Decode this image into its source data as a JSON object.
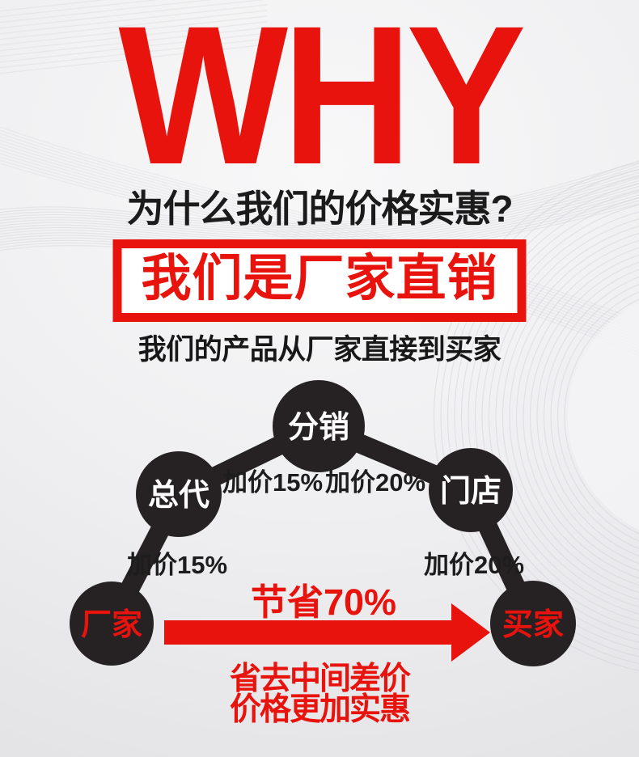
{
  "header": {
    "title": "WHY",
    "subtitle": "为什么我们的价格实惠?",
    "banner": "我们是厂家直销",
    "banner_caption": "我们的产品从厂家直接到买家"
  },
  "colors": {
    "red": "#e8130d",
    "dark": "#262122",
    "background": "#ededef"
  },
  "diagram": {
    "nodes": [
      {
        "id": "factory",
        "label": "厂家"
      },
      {
        "id": "general-agent",
        "label": "总代"
      },
      {
        "id": "distributor",
        "label": "分销"
      },
      {
        "id": "store",
        "label": "门店"
      },
      {
        "id": "buyer",
        "label": "买家"
      }
    ],
    "markup_labels": [
      {
        "label": "加价15%"
      },
      {
        "label": "加价20%"
      },
      {
        "label": "加价15%"
      },
      {
        "label": "加价20%"
      }
    ],
    "arrow_label": "节省70%",
    "caption_line1": "省去中间差价",
    "caption_line2": "价格更加实惠"
  }
}
